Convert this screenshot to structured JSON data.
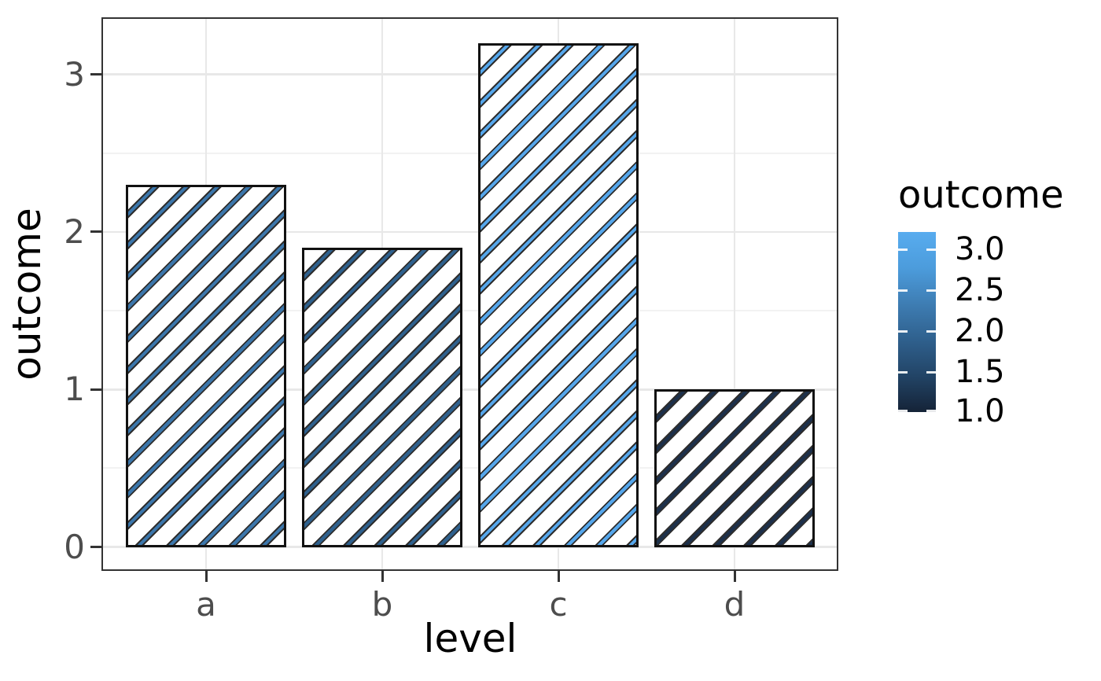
{
  "chart_data": {
    "type": "bar",
    "title": "",
    "categories": [
      "a",
      "b",
      "c",
      "d"
    ],
    "values": [
      2.3,
      1.9,
      3.2,
      1.0
    ],
    "xlabel": "level",
    "ylabel": "outcome",
    "ylim": [
      0,
      3.36
    ],
    "yticks": [
      0,
      1,
      2,
      3
    ],
    "ytick_labels": [
      "0",
      "1",
      "2",
      "3"
    ],
    "yminor": [
      0.5,
      1.5,
      2.5
    ],
    "grid": "major-and-minor, light gray on white, black panel border",
    "pattern": "diagonal stripes at 45deg rising right, dark-edged colored stripes on white bars",
    "bar_stripe_colors": [
      "#3B76AB",
      "#2E608D",
      "#55A6EB",
      "#1C304B"
    ],
    "stripe_edge_color": "#2E2E2E",
    "bar_border_color": "#111111",
    "legend": {
      "title": "outcome",
      "style": "colorbar",
      "position": "right",
      "range_top": 3.2,
      "range_bottom": 1.0,
      "tick_values": [
        3.0,
        2.5,
        2.0,
        1.5,
        1.0
      ],
      "tick_labels": [
        "3.0",
        "2.5",
        "2.0",
        "1.5",
        "1.0"
      ],
      "gradient_stops": [
        "#58ACEF",
        "#4C9CDC",
        "#3E7DB3",
        "#2F608D",
        "#224466",
        "#152337"
      ]
    }
  }
}
